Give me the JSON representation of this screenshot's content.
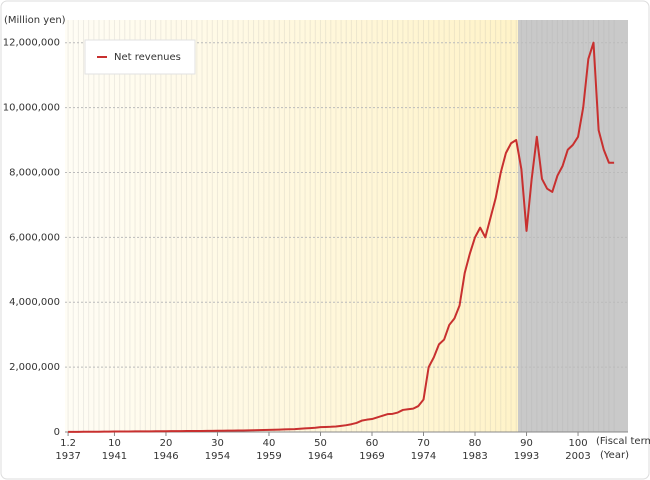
{
  "chart_data": {
    "type": "line",
    "y_label": "(Million yen)",
    "x_label_term": "(Fiscal term)",
    "x_label_year": "(Year)",
    "x": [
      1,
      2,
      3,
      4,
      5,
      6,
      7,
      8,
      9,
      10,
      11,
      12,
      13,
      14,
      15,
      16,
      17,
      18,
      19,
      20,
      21,
      22,
      23,
      24,
      25,
      26,
      27,
      28,
      29,
      30,
      31,
      32,
      33,
      34,
      35,
      36,
      37,
      38,
      39,
      40,
      41,
      42,
      43,
      44,
      45,
      46,
      47,
      48,
      49,
      50,
      51,
      52,
      53,
      54,
      55,
      56,
      57,
      58,
      59,
      60,
      61,
      62,
      63,
      64,
      65,
      66,
      67,
      68,
      69,
      70,
      71,
      72,
      73,
      74,
      75,
      76,
      77,
      78,
      79,
      80,
      81,
      82,
      83,
      84,
      85,
      86,
      87,
      88,
      89,
      90,
      91,
      92,
      93,
      94,
      95,
      96,
      97,
      98,
      99,
      100,
      101,
      102,
      103,
      104,
      105,
      106,
      107
    ],
    "series": [
      {
        "name": "Net revenues",
        "color": "#c8302f",
        "values": [
          3000,
          4000,
          5000,
          6000,
          7000,
          8000,
          9000,
          10000,
          12000,
          14000,
          15000,
          16000,
          17000,
          18000,
          19000,
          20000,
          21000,
          22000,
          23000,
          25000,
          26000,
          27000,
          28000,
          29000,
          30000,
          31000,
          32000,
          33000,
          35000,
          37000,
          39000,
          41000,
          43000,
          45000,
          48000,
          50000,
          53000,
          56000,
          60000,
          65000,
          70000,
          75000,
          80000,
          85000,
          90000,
          100000,
          110000,
          120000,
          130000,
          150000,
          155000,
          160000,
          170000,
          190000,
          210000,
          240000,
          280000,
          350000,
          380000,
          400000,
          450000,
          500000,
          550000,
          560000,
          600000,
          680000,
          700000,
          720000,
          800000,
          1000000,
          2000000,
          2300000,
          2700000,
          2850000,
          3300000,
          3500000,
          3900000,
          4900000,
          5500000,
          6000000,
          6300000,
          6000000,
          6600000,
          7200000,
          8000000,
          8600000,
          8900000,
          9000000,
          8100000,
          6200000,
          7800000,
          9100000,
          7800000,
          7500000,
          7400000,
          7900000,
          8200000,
          8700000,
          8850000,
          9100000,
          10000000,
          11500000,
          12000000,
          9300000,
          8700000,
          8300000,
          8300000
        ]
      }
    ],
    "xlim": [
      0.4,
      109.7
    ],
    "xticks": [
      {
        "value": 1,
        "label": "1.2"
      },
      10,
      20,
      30,
      40,
      50,
      60,
      70,
      80,
      90,
      100
    ],
    "xtick_years": [
      "1937",
      "1941",
      "1946",
      "1954",
      "1959",
      "1964",
      "1969",
      "1974",
      "1983",
      "1993",
      "2003"
    ],
    "ylim": [
      0,
      12700000
    ],
    "yticks": [
      {
        "value": 0,
        "label": "0"
      },
      {
        "value": 2000000,
        "label": "2,000,000"
      },
      {
        "value": 4000000,
        "label": "4,000,000"
      },
      {
        "value": 6000000,
        "label": "6,000,000"
      },
      {
        "value": 8000000,
        "label": "8,000,000"
      },
      {
        "value": 10000000,
        "label": "10,000,000"
      },
      {
        "value": 12000000,
        "label": "12,000,000"
      }
    ],
    "grid": true,
    "legend": "upper left"
  }
}
